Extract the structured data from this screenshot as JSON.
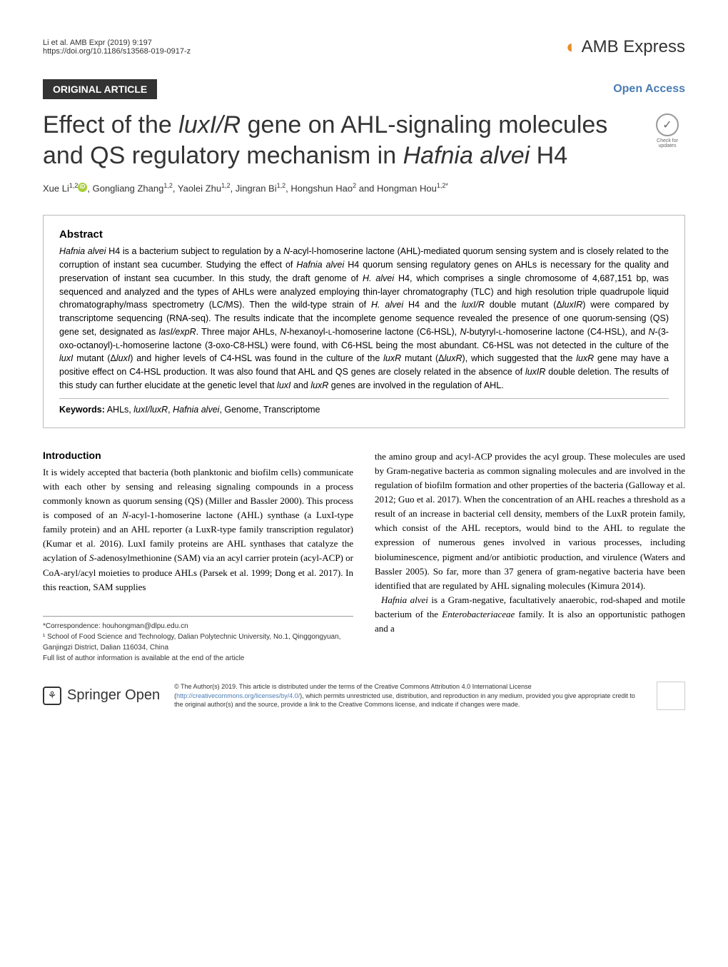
{
  "header": {
    "citation_line1": "Li et al. AMB Expr          (2019) 9:197",
    "citation_line2": "https://doi.org/10.1186/s13568-019-0917-z",
    "journal_name": "AMB Express"
  },
  "article_type": "ORIGINAL ARTICLE",
  "open_access": "Open Access",
  "check_updates_text": "Check for updates",
  "title_html": "Effect of the <em>luxI/R</em> gene on AHL-signaling molecules and QS regulatory mechanism in <em>Hafnia alvei</em> H4",
  "authors_html": "Xue Li<sup>1,2</sup><span class=\"orcid\"></span>, Gongliang Zhang<sup>1,2</sup>, Yaolei Zhu<sup>1,2</sup>, Jingran Bi<sup>1,2</sup>, Hongshun Hao<sup>2</sup> and Hongman Hou<sup>1,2*</sup>",
  "abstract": {
    "heading": "Abstract",
    "text_html": "<em>Hafnia alvei</em> H4 is a bacterium subject to regulation by a <em>N</em>-acyl-l-homoserine lactone (AHL)-mediated quorum sensing system and is closely related to the corruption of instant sea cucumber. Studying the effect of <em>Hafnia alvei</em> H4 quorum sensing regulatory genes on AHLs is necessary for the quality and preservation of instant sea cucumber. In this study, the draft genome of <em>H. alvei</em> H4, which comprises a single chromosome of 4,687,151 bp, was sequenced and analyzed and the types of AHLs were analyzed employing thin-layer chromatography (TLC) and high resolution triple quadrupole liquid chromatography/mass spectrometry (LC/MS). Then the wild-type strain of <em>H. alvei</em> H4 and the <em>luxI/R</em> double mutant (Δ<em>luxIR</em>) were compared by transcriptome sequencing (RNA-seq). The results indicate that the incomplete genome sequence revealed the presence of one quorum-sensing (QS) gene set, designated as <em>lasI/expR</em>. Three major AHLs, <em>N</em>-hexanoyl-<small>L</small>-homoserine lactone (C6-HSL), <em>N</em>-butyryl-<small>L</small>-homoserine lactone (C4-HSL), and <em>N</em>-(3-oxo-octanoyl)-<small>L</small>-homoserine lactone (3-oxo-C8-HSL) were found, with C6-HSL being the most abundant. C6-HSL was not detected in the culture of the <em>luxI</em> mutant (Δ<em>luxI</em>) and higher levels of C4-HSL was found in the culture of the <em>luxR</em> mutant (Δ<em>luxR</em>), which suggested that the <em>luxR</em> gene may have a positive effect on C4-HSL production. It was also found that AHL and QS genes are closely related in the absence of <em>luxIR</em> double deletion. The results of this study can further elucidate at the genetic level that <em>luxI</em> and <em>luxR</em> genes are involved in the regulation of AHL.",
    "keywords_label": "Keywords:",
    "keywords_html": "AHLs, <em>luxI/luxR</em>, <em>Hafnia alvei</em>, Genome, Transcriptome"
  },
  "introduction": {
    "heading": "Introduction",
    "col1_html": "It is widely accepted that bacteria (both planktonic and biofilm cells) communicate with each other by sensing and releasing signaling compounds in a process commonly known as quorum sensing (QS) (Miller and Bassler 2000). This process is composed of an <em>N</em>-acyl-1-homoserine lactone (AHL) synthase (a LuxI-type family protein) and an AHL reporter (a LuxR-type family transcription regulator) (Kumar et al. 2016). LuxI family proteins are AHL synthases that catalyze the acylation of <em>S</em>-adenosylmethionine (SAM) via an acyl carrier protein (acyl-ACP) or CoA-aryl/acyl moieties to produce AHLs (Parsek et al. 1999; Dong et al. 2017). In this reaction, SAM supplies",
    "col2_html": "the amino group and acyl-ACP provides the acyl group. These molecules are used by Gram-negative bacteria as common signaling molecules and are involved in the regulation of biofilm formation and other properties of the bacteria (Galloway et al. 2012; Guo et al. 2017). When the concentration of an AHL reaches a threshold as a result of an increase in bacterial cell density, members of the LuxR protein family, which consist of the AHL receptors, would bind to the AHL to regulate the expression of numerous genes involved in various processes, including bioluminescence, pigment and/or antibiotic production, and virulence (Waters and Bassler 2005). So far, more than 37 genera of gram-negative bacteria have been identified that are regulated by AHL signaling molecules (Kimura 2014).<br>&nbsp;&nbsp;<em>Hafnia alvei</em> is a Gram-negative, facultatively anaerobic, rod-shaped and motile bacterium of the <em>Enterobacteriaceae</em> family. It is also an opportunistic pathogen and a"
  },
  "footnotes": {
    "correspondence": "*Correspondence: houhongman@dlpu.edu.cn",
    "affiliation": "¹ School of Food Science and Technology, Dalian Polytechnic University, No.1, Qinggongyuan, Ganjingzi District, Dalian 116034, China",
    "full_list": "Full list of author information is available at the end of the article"
  },
  "footer": {
    "springer": "Springer Open",
    "license_html": "© The Author(s) 2019. This article is distributed under the terms of the Creative Commons Attribution 4.0 International License (<a>http://creativecommons.org/licenses/by/4.0/</a>), which permits unrestricted use, distribution, and reproduction in any medium, provided you give appropriate credit to the original author(s) and the source, provide a link to the Creative Commons license, and indicate if changes were made."
  },
  "colors": {
    "accent_blue": "#4a7cb3",
    "brand_orange": "#e58e26",
    "text_dark": "#333333",
    "border_gray": "#bbbbbb"
  }
}
